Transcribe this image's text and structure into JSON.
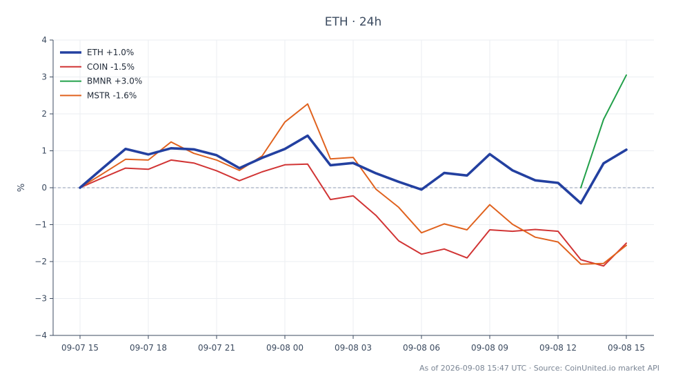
{
  "chart_data": {
    "type": "line",
    "title": "ETH · 24h",
    "xlabel": "",
    "ylabel": "%",
    "ylim": [
      -4,
      4
    ],
    "yticks": [
      -4,
      -3,
      -2,
      -1,
      0,
      1,
      2,
      3,
      4
    ],
    "ytick_labels": [
      "−4",
      "−3",
      "−2",
      "−1",
      "0",
      "1",
      "2",
      "3",
      "4"
    ],
    "xlim": [
      0,
      24.2
    ],
    "xticks": [
      0,
      3,
      6,
      9,
      12,
      15,
      18,
      21,
      24
    ],
    "xtick_labels": [
      "09-07 15",
      "09-07 18",
      "09-07 21",
      "09-08 00",
      "09-08 03",
      "09-08 06",
      "09-08 09",
      "09-08 12",
      "09-08 15"
    ],
    "grid": true,
    "zero_line": true,
    "legend_position": "top-left",
    "footer": "As of 2026-09-08 15:47 UTC · Source: CoinUnited.io market API",
    "series": [
      {
        "name": "ETH +1.0%",
        "color": "#2340a0",
        "emphasis": true,
        "x": [
          0,
          1,
          2,
          3,
          4,
          5,
          6,
          7,
          8,
          9,
          10,
          11,
          12,
          13,
          14,
          15,
          16,
          17,
          18,
          19,
          20,
          21,
          22,
          23,
          24
        ],
        "values": [
          0.0,
          0.53,
          1.05,
          0.9,
          1.07,
          1.04,
          0.88,
          0.53,
          0.81,
          1.05,
          1.41,
          0.61,
          0.67,
          0.39,
          0.16,
          -0.05,
          0.4,
          0.33,
          0.91,
          0.47,
          0.2,
          0.13,
          -0.42,
          0.66,
          1.03
        ]
      },
      {
        "name": "COIN -1.5%",
        "color": "#d13434",
        "emphasis": false,
        "x": [
          0,
          1,
          2,
          3,
          4,
          5,
          6,
          7,
          8,
          9,
          10,
          11,
          12,
          13,
          14,
          15,
          16,
          17,
          18,
          19,
          20,
          21,
          22,
          23,
          24
        ],
        "values": [
          0.0,
          0.27,
          0.53,
          0.5,
          0.75,
          0.67,
          0.46,
          0.19,
          0.43,
          0.62,
          0.64,
          -0.32,
          -0.22,
          -0.75,
          -1.44,
          -1.8,
          -1.66,
          -1.9,
          -1.14,
          -1.18,
          -1.13,
          -1.18,
          -1.95,
          -2.12,
          -1.5
        ]
      },
      {
        "name": "BMNR +3.0%",
        "color": "#22a04a",
        "emphasis": false,
        "x": [
          22,
          23,
          24
        ],
        "values": [
          0.0,
          1.85,
          3.05
        ]
      },
      {
        "name": "MSTR -1.6%",
        "color": "#e0621e",
        "emphasis": false,
        "x": [
          0,
          1,
          2,
          3,
          4,
          5,
          6,
          7,
          8,
          9,
          10,
          11,
          12,
          13,
          14,
          15,
          16,
          17,
          18,
          19,
          20,
          21,
          22,
          23,
          24
        ],
        "values": [
          0.0,
          0.38,
          0.77,
          0.75,
          1.24,
          0.93,
          0.75,
          0.47,
          0.86,
          1.78,
          2.27,
          0.78,
          0.82,
          -0.04,
          -0.53,
          -1.22,
          -0.98,
          -1.14,
          -0.46,
          -0.99,
          -1.34,
          -1.47,
          -2.07,
          -2.05,
          -1.56
        ]
      }
    ]
  }
}
